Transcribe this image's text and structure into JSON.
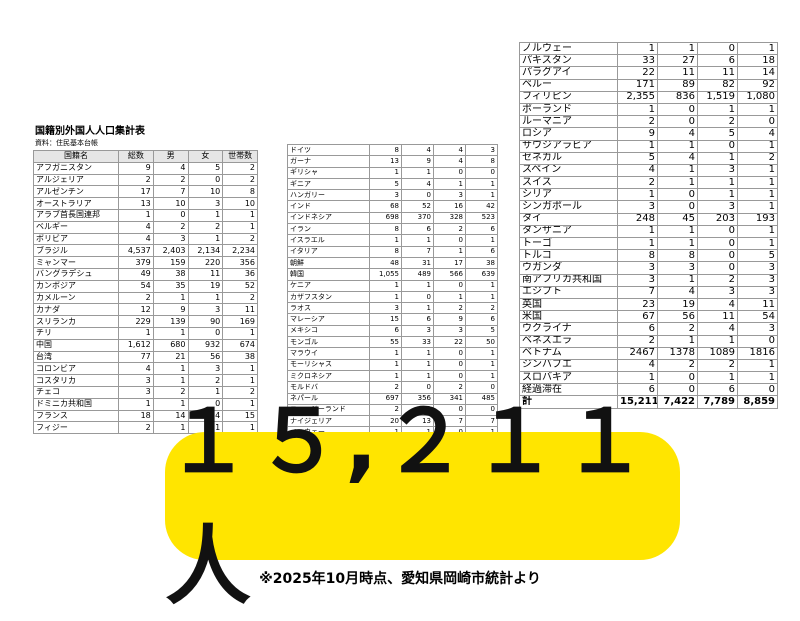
{
  "left": {
    "title": "国籍別外国人人口集計表",
    "source": "資料：住民基本台帳",
    "header": [
      "国籍名",
      "総数",
      "男",
      "女",
      "世帯数"
    ],
    "rows": [
      [
        "アフガニスタン",
        "9",
        "4",
        "5",
        "2"
      ],
      [
        "アルジェリア",
        "2",
        "2",
        "0",
        "2"
      ],
      [
        "アルゼンチン",
        "17",
        "7",
        "10",
        "8"
      ],
      [
        "オーストラリア",
        "13",
        "10",
        "3",
        "10"
      ],
      [
        "アラブ首長国連邦",
        "1",
        "0",
        "1",
        "1"
      ],
      [
        "ベルギー",
        "4",
        "2",
        "2",
        "1"
      ],
      [
        "ボリビア",
        "4",
        "3",
        "1",
        "2"
      ],
      [
        "ブラジル",
        "4,537",
        "2,403",
        "2,134",
        "2,234"
      ],
      [
        "ミャンマー",
        "379",
        "159",
        "220",
        "356"
      ],
      [
        "バングラデシュ",
        "49",
        "38",
        "11",
        "36"
      ],
      [
        "カンボジア",
        "54",
        "35",
        "19",
        "52"
      ],
      [
        "カメルーン",
        "2",
        "1",
        "1",
        "2"
      ],
      [
        "カナダ",
        "12",
        "9",
        "3",
        "11"
      ],
      [
        "スリランカ",
        "229",
        "139",
        "90",
        "169"
      ],
      [
        "チリ",
        "1",
        "1",
        "0",
        "1"
      ],
      [
        "中国",
        "1,612",
        "680",
        "932",
        "674"
      ],
      [
        "台湾",
        "77",
        "21",
        "56",
        "38"
      ],
      [
        "コロンビア",
        "4",
        "1",
        "3",
        "1"
      ],
      [
        "コスタリカ",
        "3",
        "1",
        "2",
        "1"
      ],
      [
        "チェコ",
        "3",
        "2",
        "1",
        "2"
      ],
      [
        "ドミニカ共和国",
        "1",
        "1",
        "0",
        "1"
      ],
      [
        "フランス",
        "18",
        "14",
        "4",
        "15"
      ],
      [
        "フィジー",
        "2",
        "1",
        "1",
        "1"
      ]
    ]
  },
  "middle": {
    "rows": [
      [
        "ドイツ",
        "8",
        "4",
        "4",
        "3"
      ],
      [
        "ガーナ",
        "13",
        "9",
        "4",
        "8"
      ],
      [
        "ギリシャ",
        "1",
        "1",
        "0",
        "0"
      ],
      [
        "ギニア",
        "5",
        "4",
        "1",
        "1"
      ],
      [
        "ハンガリー",
        "3",
        "0",
        "3",
        "1"
      ],
      [
        "インド",
        "68",
        "52",
        "16",
        "42"
      ],
      [
        "インドネシア",
        "698",
        "370",
        "328",
        "523"
      ],
      [
        "イラン",
        "8",
        "6",
        "2",
        "6"
      ],
      [
        "イスラエル",
        "1",
        "1",
        "0",
        "1"
      ],
      [
        "イタリア",
        "8",
        "7",
        "1",
        "6"
      ],
      [
        "朝鮮",
        "48",
        "31",
        "17",
        "38"
      ],
      [
        "韓国",
        "1,055",
        "489",
        "566",
        "639"
      ],
      [
        "ケニア",
        "1",
        "1",
        "0",
        "1"
      ],
      [
        "カザフスタン",
        "1",
        "0",
        "1",
        "1"
      ],
      [
        "ラオス",
        "3",
        "1",
        "2",
        "2"
      ],
      [
        "マレーシア",
        "15",
        "6",
        "9",
        "6"
      ],
      [
        "メキシコ",
        "6",
        "3",
        "3",
        "5"
      ],
      [
        "モンゴル",
        "55",
        "33",
        "22",
        "50"
      ],
      [
        "マラウイ",
        "1",
        "1",
        "0",
        "1"
      ],
      [
        "モーリシャス",
        "1",
        "1",
        "0",
        "1"
      ],
      [
        "ミクロネシア",
        "1",
        "1",
        "0",
        "1"
      ],
      [
        "モルドバ",
        "2",
        "0",
        "2",
        "0"
      ],
      [
        "ネパール",
        "697",
        "356",
        "341",
        "485"
      ],
      [
        "ニュージーランド",
        "2",
        "2",
        "0",
        "0"
      ],
      [
        "ナイジェリア",
        "20",
        "13",
        "7",
        "7"
      ],
      [
        "ノルウェー",
        "1",
        "1",
        "0",
        "1"
      ]
    ]
  },
  "right": {
    "rows": [
      [
        "ノルウェー",
        "1",
        "1",
        "0",
        "1"
      ],
      [
        "パキスタン",
        "33",
        "27",
        "6",
        "18"
      ],
      [
        "パラグアイ",
        "22",
        "11",
        "11",
        "14"
      ],
      [
        "ペルー",
        "171",
        "89",
        "82",
        "92"
      ],
      [
        "フィリピン",
        "2,355",
        "836",
        "1,519",
        "1,080"
      ],
      [
        "ポーランド",
        "1",
        "0",
        "1",
        "1"
      ],
      [
        "ルーマニア",
        "2",
        "0",
        "2",
        "0"
      ],
      [
        "ロシア",
        "9",
        "4",
        "5",
        "4"
      ],
      [
        "サウジアラビア",
        "1",
        "1",
        "0",
        "1"
      ],
      [
        "セネガル",
        "5",
        "4",
        "1",
        "2"
      ],
      [
        "スペイン",
        "4",
        "1",
        "3",
        "1"
      ],
      [
        "スイス",
        "2",
        "1",
        "1",
        "1"
      ],
      [
        "シリア",
        "1",
        "0",
        "1",
        "1"
      ],
      [
        "シンガポール",
        "3",
        "0",
        "3",
        "1"
      ],
      [
        "タイ",
        "248",
        "45",
        "203",
        "193"
      ],
      [
        "タンザニア",
        "1",
        "1",
        "0",
        "1"
      ],
      [
        "トーゴ",
        "1",
        "1",
        "0",
        "1"
      ],
      [
        "トルコ",
        "8",
        "8",
        "0",
        "5"
      ],
      [
        "ウガンダ",
        "3",
        "3",
        "0",
        "3"
      ],
      [
        "南アフリカ共和国",
        "3",
        "1",
        "2",
        "3"
      ],
      [
        "エジプト",
        "7",
        "4",
        "3",
        "3"
      ],
      [
        "英国",
        "23",
        "19",
        "4",
        "11"
      ],
      [
        "米国",
        "67",
        "56",
        "11",
        "54"
      ],
      [
        "ウクライナ",
        "6",
        "2",
        "4",
        "3"
      ],
      [
        "ベネズエラ",
        "2",
        "1",
        "1",
        "0"
      ],
      [
        "ベトナム",
        "2467",
        "1378",
        "1089",
        "1816"
      ],
      [
        "ジンバブエ",
        "4",
        "2",
        "2",
        "1"
      ],
      [
        "スロバキア",
        "1",
        "0",
        "1",
        "1"
      ],
      [
        "経過滞在",
        "6",
        "0",
        "6",
        "0"
      ],
      [
        "計",
        "15,211",
        "7,422",
        "7,789",
        "8,859"
      ]
    ]
  },
  "big_number": "１５,２１１人",
  "footnote": "※2025年10月時点、愛知県岡崎市統計より"
}
